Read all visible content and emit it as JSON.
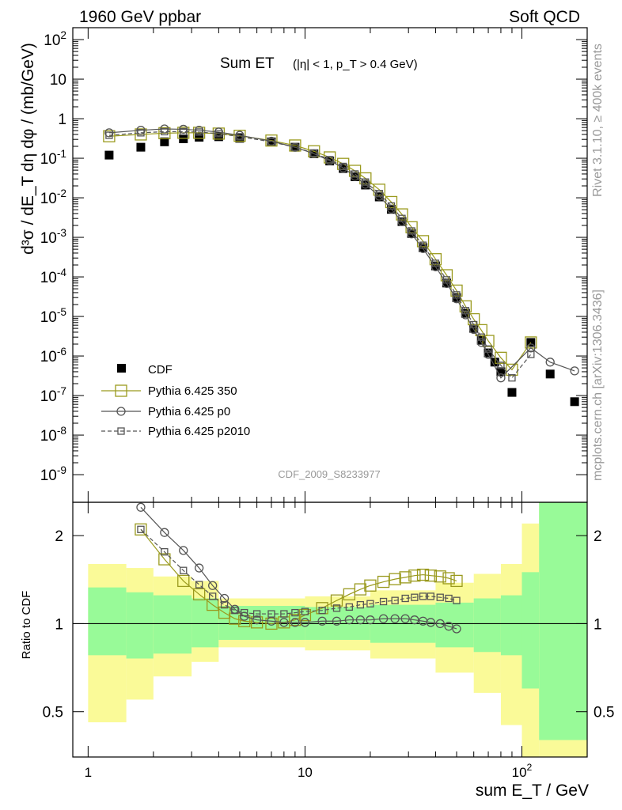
{
  "header": {
    "left": "1960 GeV ppbar",
    "right": "Soft QCD"
  },
  "plot_title": "Sum ET",
  "plot_subtitle": "(|η| < 1, p_T > 0.4 GeV)",
  "side_labels": {
    "rivet": "Rivet 3.1.10, ≥ 400k events",
    "site": "mcplots.cern.ch [arXiv:1306.3436]"
  },
  "analysis_id": "CDF_2009_S8233977",
  "legend": [
    {
      "label": "CDF",
      "marker": "filled-square",
      "color": "#000000"
    },
    {
      "label": "Pythia 6.425 350",
      "marker": "open-square",
      "color": "#9a9a1e"
    },
    {
      "label": "Pythia 6.425 p0",
      "marker": "open-circle",
      "color": "#555555"
    },
    {
      "label": "Pythia 6.425 p2010",
      "marker": "open-square-dashed",
      "color": "#555555"
    }
  ],
  "colors": {
    "data": "#000000",
    "pythia350": "#9a9a1e",
    "pythia_p0": "#555555",
    "pythia_p2010": "#555555",
    "band_inner": "#98fa98",
    "band_outer": "#fafa98"
  },
  "chart_data": [
    {
      "type": "scatter",
      "panel": "main",
      "x_scale": "log",
      "y_scale": "log",
      "xlim": [
        0.85,
        200
      ],
      "ylim": [
        2e-10,
        200
      ],
      "ylabel": "d³σ / dE_T dη dφ / (mb/GeV)",
      "y_ticks": [
        "10^-9",
        "10^-8",
        "10^-7",
        "10^-6",
        "10^-5",
        "10^-4",
        "10^-3",
        "10^-2",
        "10^-1",
        "1",
        "10",
        "10^2"
      ],
      "series": [
        {
          "name": "CDF",
          "x": [
            1.25,
            1.75,
            2.25,
            2.75,
            3.25,
            4,
            5,
            7,
            9,
            11,
            13,
            15,
            17,
            19,
            22,
            25,
            28,
            31,
            35,
            40,
            45,
            50,
            55,
            60,
            65,
            70,
            75,
            80,
            90,
            110,
            135,
            175
          ],
          "y": [
            0.12,
            0.19,
            0.26,
            0.31,
            0.34,
            0.35,
            0.32,
            0.26,
            0.19,
            0.13,
            0.085,
            0.055,
            0.034,
            0.021,
            0.0105,
            0.0051,
            0.0025,
            0.00125,
            0.00055,
            0.00019,
            7e-05,
            3e-05,
            1.2e-05,
            5e-06,
            2.5e-06,
            1.2e-06,
            7e-07,
            4e-07,
            1.2e-07,
            2.2e-06,
            3.5e-07,
            7e-08
          ]
        },
        {
          "name": "Pythia 6.425 350",
          "x": [
            1.25,
            1.75,
            2.25,
            2.75,
            3.25,
            4,
            5,
            7,
            9,
            11,
            13,
            15,
            17,
            19,
            22,
            25,
            28,
            31,
            35,
            40,
            45,
            50,
            55,
            60,
            65,
            70,
            80,
            90,
            110
          ],
          "y": [
            0.36,
            0.4,
            0.43,
            0.44,
            0.44,
            0.42,
            0.37,
            0.28,
            0.21,
            0.15,
            0.105,
            0.072,
            0.048,
            0.031,
            0.016,
            0.0078,
            0.0038,
            0.0018,
            0.0008,
            0.00028,
            0.00011,
            4.5e-05,
            1.8e-05,
            8.5e-06,
            4.5e-06,
            2.4e-06,
            9e-07,
            4.5e-07,
            2.2e-06
          ]
        },
        {
          "name": "Pythia 6.425 p0",
          "x": [
            1.25,
            1.75,
            2.25,
            2.75,
            3.25,
            4,
            5,
            7,
            9,
            11,
            13,
            15,
            17,
            19,
            22,
            25,
            28,
            31,
            35,
            40,
            45,
            50,
            55,
            60,
            65,
            70,
            80,
            110,
            135,
            175
          ],
          "y": [
            0.44,
            0.51,
            0.55,
            0.54,
            0.51,
            0.46,
            0.38,
            0.27,
            0.19,
            0.13,
            0.087,
            0.057,
            0.035,
            0.022,
            0.011,
            0.0052,
            0.0025,
            0.00122,
            0.00052,
            0.00018,
            6.8e-05,
            2.8e-05,
            1.1e-05,
            4.7e-06,
            2.2e-06,
            1.1e-06,
            2.8e-07,
            1.6e-06,
            7e-07,
            4.2e-07
          ]
        },
        {
          "name": "Pythia 6.425 p2010",
          "x": [
            1.25,
            1.75,
            2.25,
            2.75,
            3.25,
            4,
            5,
            7,
            9,
            11,
            13,
            15,
            17,
            19,
            22,
            25,
            28,
            31,
            35,
            40,
            45,
            50,
            55,
            60,
            65,
            70,
            80,
            90,
            110
          ],
          "y": [
            0.38,
            0.44,
            0.47,
            0.47,
            0.46,
            0.42,
            0.35,
            0.26,
            0.19,
            0.135,
            0.092,
            0.062,
            0.04,
            0.025,
            0.0128,
            0.0062,
            0.003,
            0.00145,
            0.00063,
            0.00022,
            8.4e-05,
            3.5e-05,
            1.4e-05,
            6.2e-06,
            3e-06,
            1.5e-06,
            5.8e-07,
            2.8e-07,
            1.1e-06
          ]
        }
      ]
    },
    {
      "type": "line",
      "panel": "ratio",
      "x_scale": "log",
      "y_scale": "log",
      "xlim": [
        0.85,
        200
      ],
      "ylim": [
        0.35,
        2.6
      ],
      "xlabel": "sum E_T / GeV",
      "ylabel": "Ratio to CDF",
      "x_tick_labels": [
        "1",
        "10",
        "10^2"
      ],
      "y_tick_labels": [
        "0.5",
        "1",
        "2"
      ],
      "reference_line": 1,
      "uncertainty_bands": {
        "x_edges": [
          1,
          1.5,
          2,
          3,
          4,
          10,
          20,
          40,
          60,
          80,
          100,
          120,
          200
        ],
        "inner_lo": [
          0.78,
          0.76,
          0.79,
          0.83,
          0.88,
          0.88,
          0.86,
          0.83,
          0.8,
          0.78,
          0.6,
          0.4
        ],
        "inner_hi": [
          1.33,
          1.28,
          1.25,
          1.22,
          1.15,
          1.14,
          1.16,
          1.18,
          1.22,
          1.25,
          1.5,
          2.6
        ],
        "outer_lo": [
          0.46,
          0.55,
          0.66,
          0.74,
          0.83,
          0.81,
          0.76,
          0.68,
          0.58,
          0.45,
          0.35,
          0.35
        ],
        "outer_hi": [
          1.6,
          1.55,
          1.45,
          1.4,
          1.22,
          1.24,
          1.3,
          1.38,
          1.48,
          1.6,
          2.2,
          2.6
        ]
      },
      "series": [
        {
          "name": "Pythia 6.425 350",
          "x": [
            1.75,
            2.25,
            2.75,
            3.25,
            3.75,
            4.25,
            4.75,
            5.25,
            6,
            7,
            8,
            9,
            10,
            12,
            14,
            16,
            18,
            20,
            23,
            26,
            29,
            32,
            35,
            38,
            42,
            46,
            50
          ],
          "y": [
            2.1,
            1.66,
            1.4,
            1.26,
            1.16,
            1.09,
            1.04,
            1.02,
            1.01,
            1.0,
            1.01,
            1.03,
            1.07,
            1.13,
            1.2,
            1.26,
            1.31,
            1.35,
            1.39,
            1.42,
            1.44,
            1.46,
            1.47,
            1.46,
            1.45,
            1.43,
            1.4
          ]
        },
        {
          "name": "Pythia 6.425 p0",
          "x": [
            1.75,
            2.25,
            2.75,
            3.25,
            3.75,
            4.25,
            4.75,
            5.25,
            6,
            7,
            8,
            9,
            10,
            12,
            14,
            16,
            18,
            20,
            23,
            26,
            29,
            32,
            35,
            38,
            42,
            46,
            50
          ],
          "y": [
            2.5,
            2.05,
            1.78,
            1.55,
            1.35,
            1.22,
            1.12,
            1.06,
            1.03,
            1.02,
            1.01,
            1.01,
            1.01,
            1.02,
            1.02,
            1.03,
            1.03,
            1.03,
            1.04,
            1.04,
            1.04,
            1.03,
            1.02,
            1.01,
            1.0,
            0.98,
            0.96
          ]
        },
        {
          "name": "Pythia 6.425 p2010",
          "x": [
            1.75,
            2.25,
            2.75,
            3.25,
            3.75,
            4.25,
            4.75,
            5.25,
            6,
            7,
            8,
            9,
            10,
            12,
            14,
            16,
            18,
            20,
            23,
            26,
            29,
            32,
            35,
            38,
            42,
            46,
            50
          ],
          "y": [
            2.1,
            1.76,
            1.52,
            1.36,
            1.24,
            1.16,
            1.11,
            1.09,
            1.08,
            1.08,
            1.08,
            1.09,
            1.1,
            1.11,
            1.13,
            1.14,
            1.16,
            1.17,
            1.19,
            1.2,
            1.22,
            1.23,
            1.24,
            1.24,
            1.23,
            1.22,
            1.2
          ]
        }
      ]
    }
  ]
}
